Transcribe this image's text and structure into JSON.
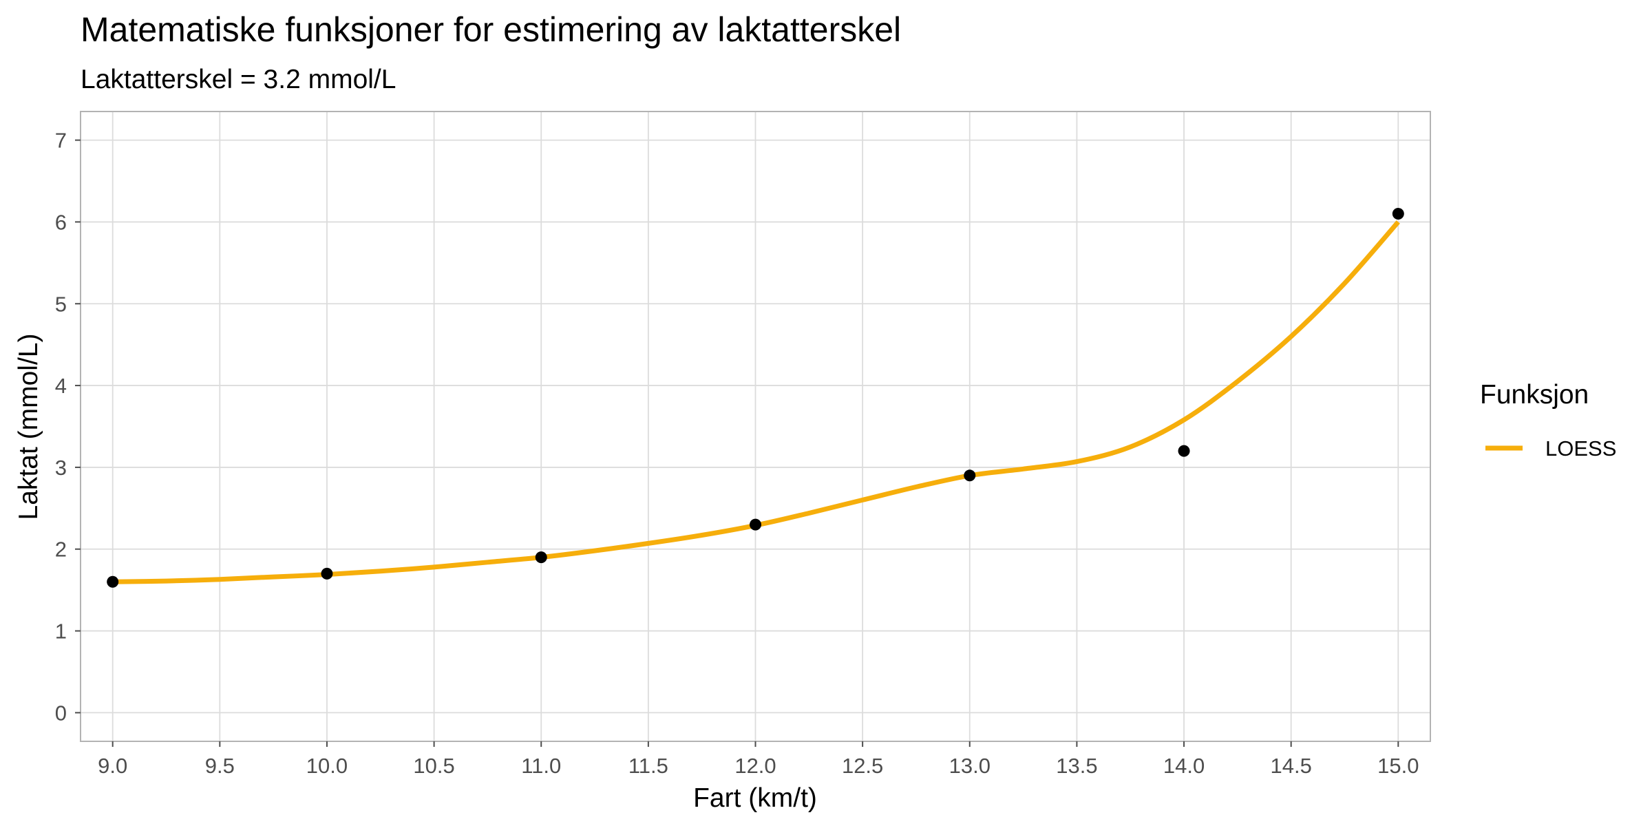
{
  "chart_data": {
    "type": "line",
    "title": "Matematiske funksjoner for estimering av laktatterskel",
    "subtitle": "Laktatterskel = 3.2 mmol/L",
    "xlabel": "Fart (km/t)",
    "ylabel": "Laktat (mmol/L)",
    "xlim": [
      8.85,
      15.15
    ],
    "ylim": [
      -0.35,
      7.35
    ],
    "x_ticks": [
      9.0,
      9.5,
      10.0,
      10.5,
      11.0,
      11.5,
      12.0,
      12.5,
      13.0,
      13.5,
      14.0,
      14.5,
      15.0
    ],
    "x_tick_labels": [
      "9.0",
      "9.5",
      "10.0",
      "10.5",
      "11.0",
      "11.5",
      "12.0",
      "12.5",
      "13.0",
      "13.5",
      "14.0",
      "14.5",
      "15.0"
    ],
    "y_ticks": [
      0,
      1,
      2,
      3,
      4,
      5,
      6,
      7
    ],
    "y_tick_labels": [
      "0",
      "1",
      "2",
      "3",
      "4",
      "5",
      "6",
      "7"
    ],
    "grid": true,
    "legend": {
      "title": "Funksjon",
      "position": "right"
    },
    "points": {
      "x": [
        9,
        10,
        11,
        12,
        13,
        14,
        15
      ],
      "y": [
        1.6,
        1.7,
        1.9,
        2.3,
        2.9,
        3.2,
        6.1
      ],
      "color": "#000000"
    },
    "series": [
      {
        "name": "LOESS",
        "color": "#f6ae0b",
        "x": [
          9.0,
          9.25,
          9.5,
          9.75,
          10.0,
          10.25,
          10.5,
          10.75,
          11.0,
          11.25,
          11.5,
          11.75,
          12.0,
          12.25,
          12.5,
          12.75,
          13.0,
          13.25,
          13.5,
          13.75,
          14.0,
          14.25,
          14.5,
          14.75,
          15.0
        ],
        "y": [
          1.6,
          1.61,
          1.63,
          1.66,
          1.69,
          1.73,
          1.78,
          1.84,
          1.9,
          1.98,
          2.07,
          2.17,
          2.29,
          2.44,
          2.6,
          2.76,
          2.9,
          2.98,
          3.07,
          3.25,
          3.58,
          4.05,
          4.6,
          5.25,
          6.0
        ]
      }
    ]
  }
}
